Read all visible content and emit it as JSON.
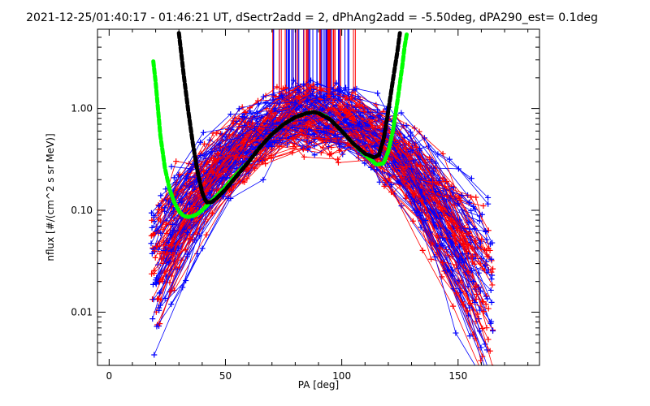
{
  "chart_data": {
    "type": "line",
    "title": "2021-12-25/01:40:17 - 01:46:21 UT, dSectr2add = 2, dPhAng2add = -5.50deg, dPA290_est=   0.1deg",
    "xlabel": "PA [deg]",
    "ylabel": "nflux [#/(cm^2 s sr MeV)]",
    "xlim": [
      -5,
      185
    ],
    "ylim": [
      0.003,
      6.0
    ],
    "yscale": "log",
    "x_ticks": [
      0,
      50,
      100,
      150
    ],
    "x_tick_labels": [
      "0",
      "50",
      "100",
      "150"
    ],
    "y_ticks": [
      0.01,
      0.1,
      1.0
    ],
    "y_tick_labels": [
      "0.01",
      "0.10",
      "1.00"
    ],
    "grid": false,
    "legend": "none",
    "colors": {
      "red": "#ff0000",
      "blue": "#0000ff",
      "green": "#00ff00",
      "black": "#000000"
    },
    "series": [
      {
        "color": "#00ff00",
        "style": "dashed-thick",
        "x": [
          19,
          20,
          22,
          24,
          26,
          28,
          30,
          32,
          34,
          36,
          38,
          40,
          45,
          50,
          55,
          60,
          65,
          70,
          75,
          80,
          85,
          88,
          90,
          93,
          95,
          100,
          105,
          110,
          115,
          118,
          120,
          122,
          124,
          126,
          127,
          128
        ],
        "y": [
          2.9,
          1.8,
          0.55,
          0.26,
          0.16,
          0.12,
          0.098,
          0.088,
          0.086,
          0.088,
          0.092,
          0.1,
          0.13,
          0.17,
          0.23,
          0.3,
          0.42,
          0.56,
          0.7,
          0.82,
          0.9,
          0.92,
          0.9,
          0.84,
          0.78,
          0.6,
          0.45,
          0.35,
          0.28,
          0.29,
          0.38,
          0.6,
          1.2,
          2.6,
          4.0,
          5.5
        ]
      },
      {
        "color": "#000000",
        "style": "dashed-thick",
        "x": [
          30,
          32,
          34,
          36,
          38,
          40,
          41,
          42,
          44,
          46,
          50,
          55,
          60,
          65,
          70,
          75,
          80,
          85,
          88,
          90,
          95,
          100,
          105,
          110,
          114,
          116,
          118,
          120,
          122,
          124,
          125
        ],
        "y": [
          5.5,
          2.2,
          0.95,
          0.45,
          0.24,
          0.15,
          0.13,
          0.12,
          0.12,
          0.13,
          0.16,
          0.22,
          0.3,
          0.42,
          0.56,
          0.7,
          0.82,
          0.9,
          0.92,
          0.9,
          0.78,
          0.6,
          0.45,
          0.36,
          0.33,
          0.35,
          0.5,
          0.95,
          1.9,
          3.7,
          5.5
        ]
      }
    ]
  }
}
